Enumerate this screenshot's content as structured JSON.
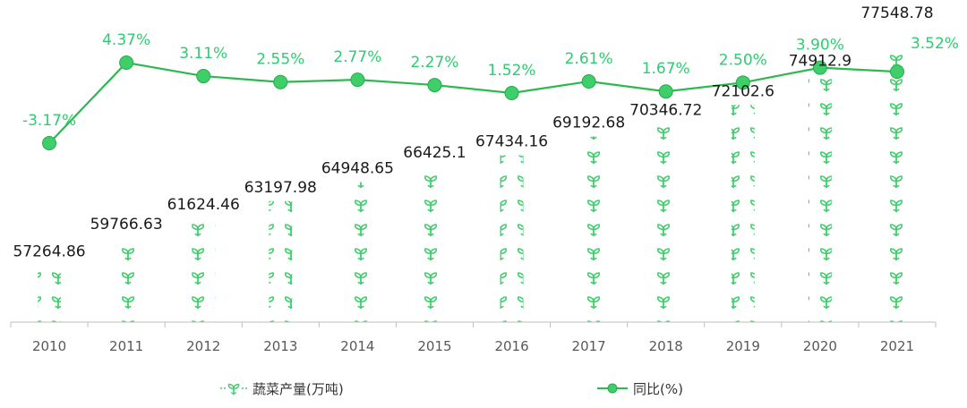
{
  "chart_data": {
    "type": "bar+line",
    "categories": [
      "2010",
      "2011",
      "2012",
      "2013",
      "2014",
      "2015",
      "2016",
      "2017",
      "2018",
      "2019",
      "2020",
      "2021"
    ],
    "series": [
      {
        "name": "蔬菜产量(万吨)",
        "kind": "bar",
        "values": [
          57264.86,
          59766.63,
          61624.46,
          63197.98,
          64948.65,
          66425.1,
          67434.16,
          69192.68,
          70346.72,
          72102.6,
          74912.9,
          77548.78
        ],
        "labels": [
          "57264.86",
          "59766.63",
          "61624.46",
          "63197.98",
          "64948.65",
          "66425.1",
          "67434.16",
          "69192.68",
          "70346.72",
          "72102.6",
          "74912.9",
          "77548.78"
        ]
      },
      {
        "name": "同比(%)",
        "kind": "line",
        "values": [
          -3.17,
          4.37,
          3.11,
          2.55,
          2.77,
          2.27,
          1.52,
          2.61,
          1.67,
          2.5,
          3.9,
          3.52
        ],
        "labels": [
          "-3.17%",
          "4.37%",
          "3.11%",
          "2.55%",
          "2.77%",
          "2.27%",
          "1.52%",
          "2.61%",
          "1.67%",
          "2.50%",
          "3.90%",
          "3.52%"
        ]
      }
    ],
    "legend_position": "bottom",
    "grid": false,
    "colors": {
      "bar": "#3ecf6a",
      "line": "#2eb84f",
      "pct_label": "#2ecc71",
      "value_label": "#1a1a1a",
      "axis": "#bfbfbf"
    }
  }
}
